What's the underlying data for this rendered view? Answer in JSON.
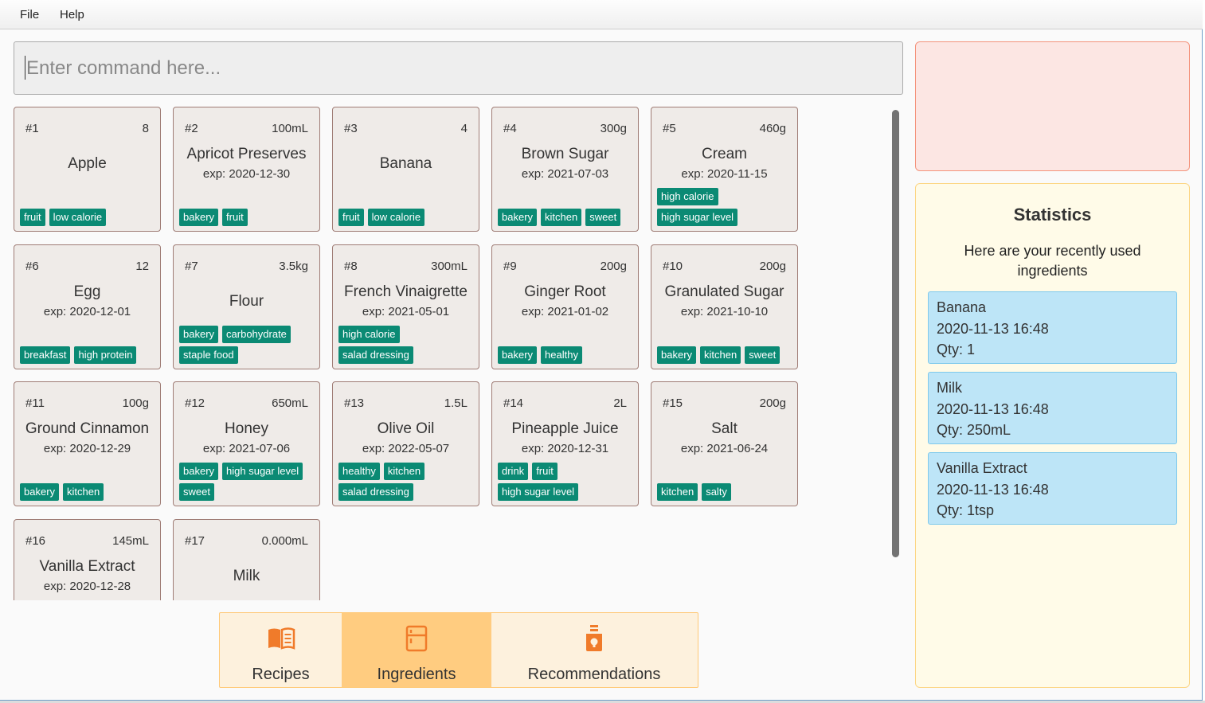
{
  "menu": {
    "file": "File",
    "help": "Help"
  },
  "command": {
    "placeholder": "Enter command here..."
  },
  "ingredients": [
    {
      "index": "#1",
      "qty": "8",
      "name": "Apple",
      "exp": "",
      "tags": [
        "fruit",
        "low calorie"
      ]
    },
    {
      "index": "#2",
      "qty": "100mL",
      "name": "Apricot Preserves",
      "exp": "exp: 2020-12-30",
      "tags": [
        "bakery",
        "fruit"
      ]
    },
    {
      "index": "#3",
      "qty": "4",
      "name": "Banana",
      "exp": "",
      "tags": [
        "fruit",
        "low calorie"
      ]
    },
    {
      "index": "#4",
      "qty": "300g",
      "name": "Brown Sugar",
      "exp": "exp: 2021-07-03",
      "tags": [
        "bakery",
        "kitchen",
        "sweet"
      ]
    },
    {
      "index": "#5",
      "qty": "460g",
      "name": "Cream",
      "exp": "exp: 2020-11-15",
      "tags": [
        "high calorie",
        "high sugar level"
      ]
    },
    {
      "index": "#6",
      "qty": "12",
      "name": "Egg",
      "exp": "exp: 2020-12-01",
      "tags": [
        "breakfast",
        "high protein"
      ]
    },
    {
      "index": "#7",
      "qty": "3.5kg",
      "name": "Flour",
      "exp": "",
      "tags": [
        "bakery",
        "carbohydrate",
        "staple food"
      ]
    },
    {
      "index": "#8",
      "qty": "300mL",
      "name": "French Vinaigrette",
      "exp": "exp: 2021-05-01",
      "tags": [
        "high calorie",
        "salad dressing"
      ]
    },
    {
      "index": "#9",
      "qty": "200g",
      "name": "Ginger Root",
      "exp": "exp: 2021-01-02",
      "tags": [
        "bakery",
        "healthy"
      ]
    },
    {
      "index": "#10",
      "qty": "200g",
      "name": "Granulated Sugar",
      "exp": "exp: 2021-10-10",
      "tags": [
        "bakery",
        "kitchen",
        "sweet"
      ]
    },
    {
      "index": "#11",
      "qty": "100g",
      "name": "Ground Cinnamon",
      "exp": "exp: 2020-12-29",
      "tags": [
        "bakery",
        "kitchen"
      ]
    },
    {
      "index": "#12",
      "qty": "650mL",
      "name": "Honey",
      "exp": "exp: 2021-07-06",
      "tags": [
        "bakery",
        "high sugar level",
        "sweet"
      ]
    },
    {
      "index": "#13",
      "qty": "1.5L",
      "name": "Olive Oil",
      "exp": "exp: 2022-05-07",
      "tags": [
        "healthy",
        "kitchen",
        "salad dressing"
      ]
    },
    {
      "index": "#14",
      "qty": "2L",
      "name": "Pineapple Juice",
      "exp": "exp: 2020-12-31",
      "tags": [
        "drink",
        "fruit",
        "high sugar level"
      ]
    },
    {
      "index": "#15",
      "qty": "200g",
      "name": "Salt",
      "exp": "exp: 2021-06-24",
      "tags": [
        "kitchen",
        "salty"
      ]
    },
    {
      "index": "#16",
      "qty": "145mL",
      "name": "Vanilla Extract",
      "exp": "exp: 2020-12-28",
      "tags": []
    },
    {
      "index": "#17",
      "qty": "0.000mL",
      "name": "Milk",
      "exp": "",
      "tags": []
    }
  ],
  "tabs": {
    "recipes": "Recipes",
    "ingredients": "Ingredients",
    "recommendations": "Recommendations",
    "active": "ingredients",
    "icon_color": "#f07b2a"
  },
  "stats": {
    "title": "Statistics",
    "subtitle": "Here are your recently used ingredients",
    "recent": [
      {
        "name": "Banana",
        "time": "2020-11-13 16:48",
        "qty": "Qty: 1"
      },
      {
        "name": "Milk",
        "time": "2020-11-13 16:48",
        "qty": "Qty: 250mL"
      },
      {
        "name": "Vanilla Extract",
        "time": "2020-11-13 16:48",
        "qty": "Qty: 1tsp"
      }
    ]
  }
}
